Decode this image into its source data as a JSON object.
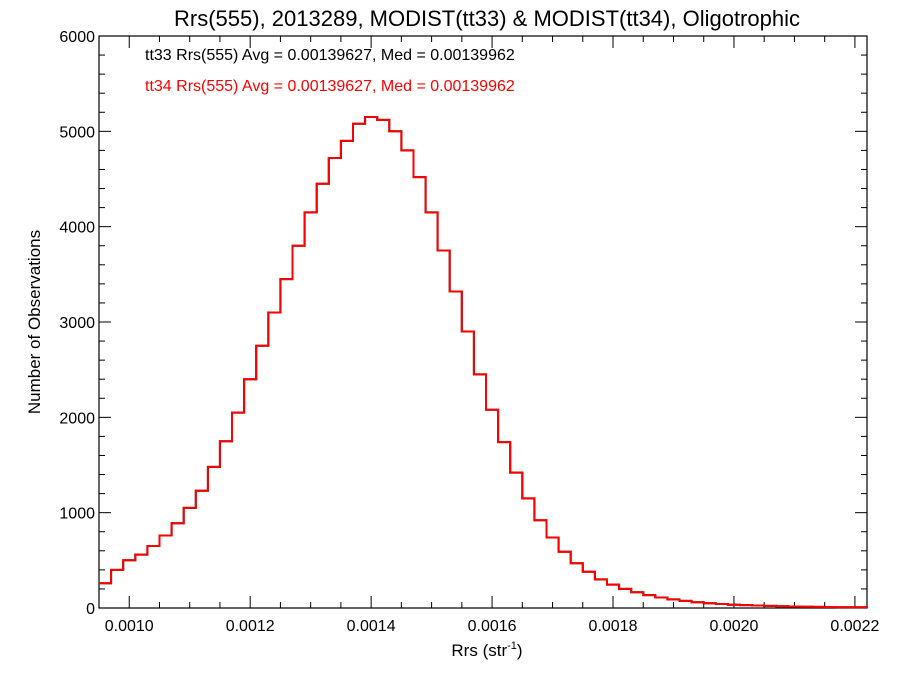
{
  "chart_data": {
    "type": "step",
    "title": "Rrs(555), 2013289, MODIST(tt33) & MODIST(tt34), Oligotrophic",
    "xlabel": {
      "base": "Rrs (str",
      "sup": "-1",
      "close": ")"
    },
    "ylabel": "Number of Observations",
    "xlim": [
      0.00095,
      0.00222
    ],
    "ylim": [
      0,
      6000
    ],
    "xticks": [
      0.001,
      0.0012,
      0.0014,
      0.0016,
      0.0018,
      0.002,
      0.0022
    ],
    "xtick_labels": [
      "0.0010",
      "0.0012",
      "0.0014",
      "0.0016",
      "0.0018",
      "0.0020",
      "0.0022"
    ],
    "yticks": [
      0,
      1000,
      2000,
      3000,
      4000,
      5000,
      6000
    ],
    "ytick_labels": [
      "0",
      "1000",
      "2000",
      "3000",
      "4000",
      "5000",
      "6000"
    ],
    "annotations": [
      {
        "text": "tt33 Rrs(555) Avg = 0.00139627, Med = 0.00139962",
        "color": "#000000"
      },
      {
        "text": "tt34 Rrs(555) Avg = 0.00139627, Med = 0.00139962",
        "color": "#ff0000"
      }
    ],
    "grid": false,
    "series": [
      {
        "color": "#000000",
        "x": [
          0.00095,
          0.00097,
          0.00099,
          0.00101,
          0.00103,
          0.00105,
          0.00107,
          0.00109,
          0.00111,
          0.00113,
          0.00115,
          0.00117,
          0.00119,
          0.00121,
          0.00123,
          0.00125,
          0.00127,
          0.00129,
          0.00131,
          0.00133,
          0.00135,
          0.00137,
          0.00139,
          0.00141,
          0.00143,
          0.00145,
          0.00147,
          0.00149,
          0.00151,
          0.00153,
          0.00155,
          0.00157,
          0.00159,
          0.00161,
          0.00163,
          0.00165,
          0.00167,
          0.00169,
          0.00171,
          0.00173,
          0.00175,
          0.00177,
          0.00179,
          0.00181,
          0.00183,
          0.00185,
          0.00187,
          0.00189,
          0.00191,
          0.00193,
          0.00195,
          0.00197,
          0.00199,
          0.00201,
          0.00203,
          0.00205,
          0.00207,
          0.00209,
          0.00211,
          0.00213,
          0.00215,
          0.00217,
          0.00219,
          0.00222
        ],
        "y": [
          260,
          400,
          500,
          560,
          650,
          760,
          890,
          1050,
          1230,
          1480,
          1750,
          2050,
          2400,
          2750,
          3100,
          3450,
          3800,
          4150,
          4450,
          4720,
          4900,
          5080,
          5150,
          5120,
          5000,
          4800,
          4520,
          4150,
          3750,
          3320,
          2900,
          2450,
          2080,
          1740,
          1420,
          1150,
          920,
          740,
          590,
          470,
          380,
          300,
          245,
          200,
          165,
          135,
          110,
          90,
          75,
          60,
          50,
          42,
          35,
          30,
          26,
          22,
          19,
          16,
          14,
          12,
          10,
          8,
          7,
          6
        ]
      },
      {
        "color": "#ff0000",
        "x": [
          0.00095,
          0.00097,
          0.00099,
          0.00101,
          0.00103,
          0.00105,
          0.00107,
          0.00109,
          0.00111,
          0.00113,
          0.00115,
          0.00117,
          0.00119,
          0.00121,
          0.00123,
          0.00125,
          0.00127,
          0.00129,
          0.00131,
          0.00133,
          0.00135,
          0.00137,
          0.00139,
          0.00141,
          0.00143,
          0.00145,
          0.00147,
          0.00149,
          0.00151,
          0.00153,
          0.00155,
          0.00157,
          0.00159,
          0.00161,
          0.00163,
          0.00165,
          0.00167,
          0.00169,
          0.00171,
          0.00173,
          0.00175,
          0.00177,
          0.00179,
          0.00181,
          0.00183,
          0.00185,
          0.00187,
          0.00189,
          0.00191,
          0.00193,
          0.00195,
          0.00197,
          0.00199,
          0.00201,
          0.00203,
          0.00205,
          0.00207,
          0.00209,
          0.00211,
          0.00213,
          0.00215,
          0.00217,
          0.00219,
          0.00222
        ],
        "y": [
          260,
          400,
          500,
          560,
          650,
          760,
          890,
          1050,
          1230,
          1480,
          1750,
          2050,
          2400,
          2750,
          3100,
          3450,
          3800,
          4150,
          4450,
          4720,
          4900,
          5080,
          5150,
          5120,
          5000,
          4800,
          4520,
          4150,
          3750,
          3320,
          2900,
          2450,
          2080,
          1740,
          1420,
          1150,
          920,
          740,
          590,
          470,
          380,
          300,
          245,
          200,
          165,
          135,
          110,
          90,
          75,
          60,
          50,
          42,
          35,
          30,
          26,
          22,
          19,
          16,
          14,
          12,
          10,
          8,
          7,
          6
        ]
      }
    ]
  }
}
